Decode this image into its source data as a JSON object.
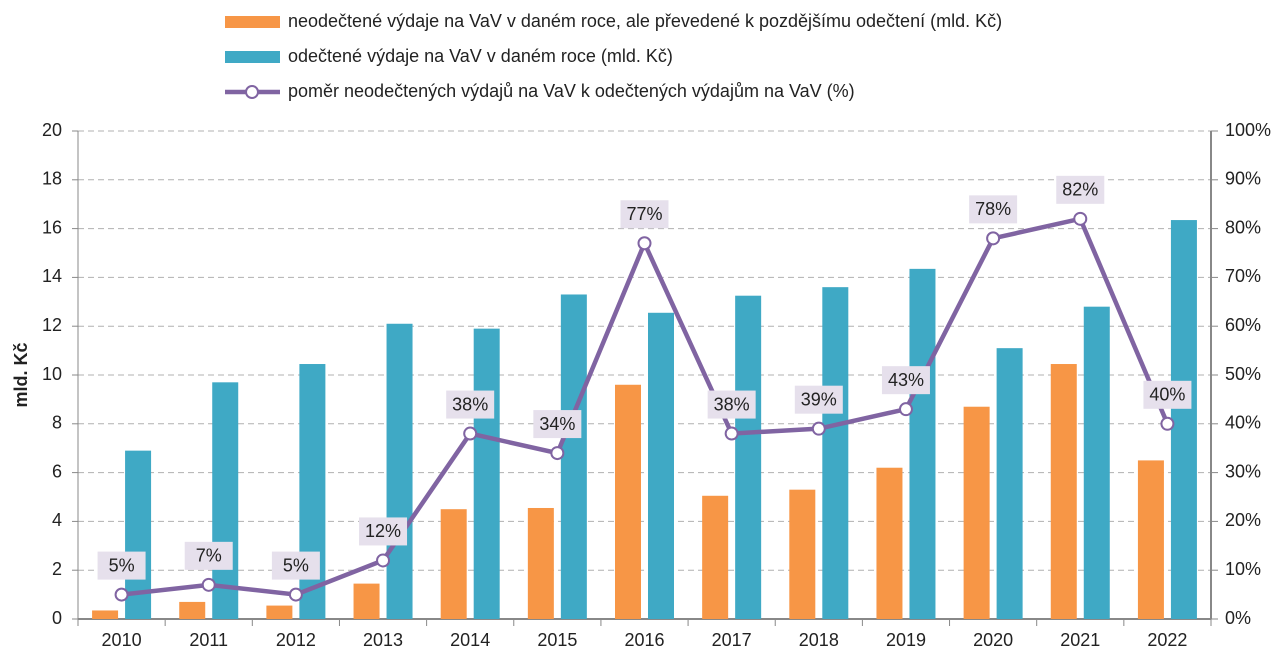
{
  "chart_data": {
    "type": "bar",
    "categories": [
      "2010",
      "2011",
      "2012",
      "2013",
      "2014",
      "2015",
      "2016",
      "2017",
      "2018",
      "2019",
      "2020",
      "2021",
      "2022"
    ],
    "y_label": "mld. Kč",
    "series": [
      {
        "name": "neodečtené výdaje na VaV v daném roce, ale převedené k pozdějšímu odečtení (mld. Kč)",
        "type": "bar",
        "color": "#f79646",
        "values": [
          0.35,
          0.7,
          0.55,
          1.45,
          4.5,
          4.55,
          9.6,
          5.05,
          5.3,
          6.2,
          8.7,
          10.45,
          6.5
        ]
      },
      {
        "name": "odečtené výdaje na VaV v daném roce (mld. Kč)",
        "type": "bar",
        "color": "#3fa9c5",
        "values": [
          6.9,
          9.7,
          10.45,
          12.1,
          11.9,
          13.3,
          12.55,
          13.25,
          13.6,
          14.35,
          11.1,
          12.8,
          16.35
        ]
      },
      {
        "name": "poměr neodečtených výdajů na VaV k odečtených výdajům na VaV (%)",
        "type": "line",
        "axis": "y2",
        "color": "#8064a2",
        "values": [
          5,
          7,
          5,
          12,
          38,
          34,
          77,
          38,
          39,
          43,
          78,
          82,
          40
        ],
        "value_labels": [
          "5%",
          "7%",
          "5%",
          "12%",
          "38%",
          "34%",
          "77%",
          "38%",
          "39%",
          "43%",
          "78%",
          "82%",
          "40%"
        ]
      }
    ],
    "ylim": [
      0,
      20
    ],
    "yticks": [
      0,
      2,
      4,
      6,
      8,
      10,
      12,
      14,
      16,
      18,
      20
    ],
    "y2lim": [
      0,
      100
    ],
    "y2ticks": [
      {
        "value": 0,
        "label": "0%"
      },
      {
        "value": 10,
        "label": "10%"
      },
      {
        "value": 20,
        "label": "20%"
      },
      {
        "value": 30,
        "label": "30%"
      },
      {
        "value": 40,
        "label": "40%"
      },
      {
        "value": 50,
        "label": "50%"
      },
      {
        "value": 60,
        "label": "60%"
      },
      {
        "value": 70,
        "label": "70%"
      },
      {
        "value": 80,
        "label": "80%"
      },
      {
        "value": 90,
        "label": "90%"
      },
      {
        "value": 100,
        "label": "100%"
      }
    ],
    "grid": true,
    "legend": "top"
  }
}
